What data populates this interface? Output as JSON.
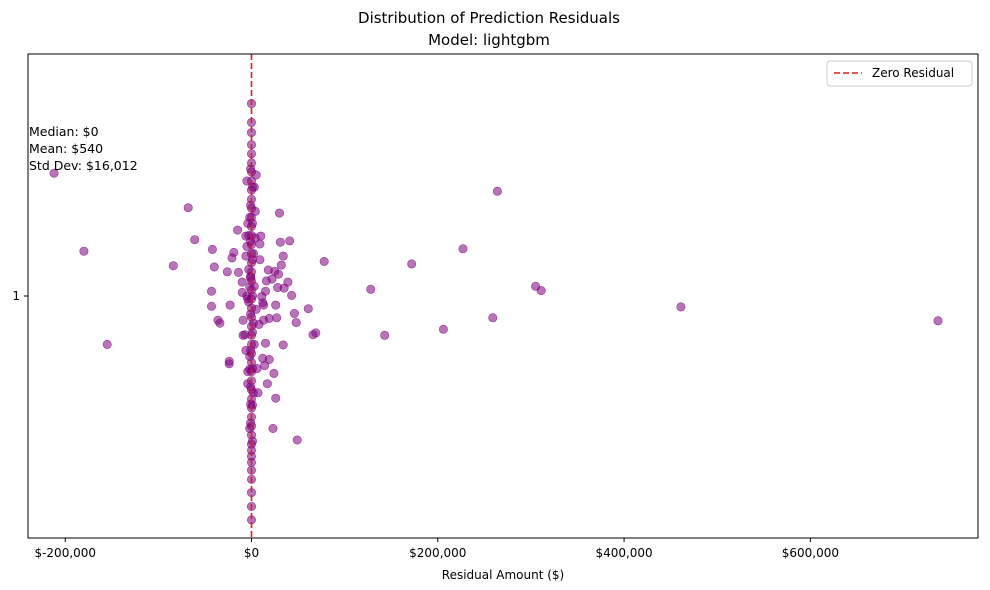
{
  "chart_data": {
    "type": "scatter",
    "title": "Distribution of Prediction Residuals",
    "subtitle": "Model: lightgbm",
    "xlabel": "Residual Amount ($)",
    "ylabel": "",
    "xlim": [
      -240000,
      780000
    ],
    "ylim": [
      0.6,
      1.4
    ],
    "x_ticks": [
      -200000,
      0,
      200000,
      400000,
      600000
    ],
    "x_tick_labels": [
      "$-200,000",
      "$0",
      "$200,000",
      "$400,000",
      "$600,000"
    ],
    "y_ticks": [
      1
    ],
    "y_tick_labels": [
      "1"
    ],
    "grid": false,
    "legend": {
      "placement": "top-right",
      "entries": [
        {
          "label": "Zero Residual",
          "style": "red-dashed-line"
        }
      ]
    },
    "reference_line": {
      "x": 0,
      "label": "Zero Residual",
      "color": "#e41a1c"
    },
    "point_color": "#800080",
    "stats": [
      "Median: $0",
      "Mean: $540",
      "Std Dev: $16,012"
    ],
    "points": [
      [
        -212000,
        1.203
      ],
      [
        -180000,
        1.074
      ],
      [
        -155000,
        0.92
      ],
      [
        -84000,
        1.05
      ],
      [
        -68000,
        1.146
      ],
      [
        -61000,
        1.093
      ],
      [
        -42000,
        1.077
      ],
      [
        -40000,
        1.048
      ],
      [
        -43000,
        1.008
      ],
      [
        -43000,
        0.983
      ],
      [
        -36000,
        0.96
      ],
      [
        -34000,
        0.955
      ],
      [
        -26000,
        1.04
      ],
      [
        -24000,
        0.892
      ],
      [
        -24000,
        0.888
      ],
      [
        -23000,
        0.985
      ],
      [
        -21000,
        1.063
      ],
      [
        -19000,
        1.072
      ],
      [
        -15000,
        1.109
      ],
      [
        -14000,
        1.039
      ],
      [
        -10000,
        1.023
      ],
      [
        -10000,
        1.006
      ],
      [
        -9000,
        0.96
      ],
      [
        -9000,
        0.935
      ],
      [
        -7000,
        0.936
      ],
      [
        -6000,
        0.91
      ],
      [
        -6000,
        1.066
      ],
      [
        -6000,
        1.099
      ],
      [
        -5000,
        1.082
      ],
      [
        -5000,
        1.0
      ],
      [
        -4000,
        0.995
      ],
      [
        -4000,
        0.875
      ],
      [
        -4000,
        0.855
      ],
      [
        -3000,
        1.044
      ],
      [
        -2000,
        0.879
      ],
      [
        -2000,
        0.781
      ],
      [
        -1000,
        0.821
      ],
      [
        -1000,
        1.032
      ],
      [
        3000,
        1.016
      ],
      [
        4000,
        1.096
      ],
      [
        5000,
        0.978
      ],
      [
        6000,
        0.88
      ],
      [
        7000,
        0.84
      ],
      [
        8000,
        0.953
      ],
      [
        9000,
        1.086
      ],
      [
        9000,
        1.06
      ],
      [
        10000,
        1.099
      ],
      [
        11000,
        0.999
      ],
      [
        12000,
        0.989
      ],
      [
        12000,
        0.897
      ],
      [
        13000,
        0.985
      ],
      [
        13000,
        0.96
      ],
      [
        14000,
        0.885
      ],
      [
        15000,
        0.922
      ],
      [
        15000,
        1.008
      ],
      [
        16000,
        1.025
      ],
      [
        17000,
        0.855
      ],
      [
        18000,
        1.043
      ],
      [
        19000,
        0.963
      ],
      [
        19000,
        0.895
      ],
      [
        22000,
        1.028
      ],
      [
        23000,
        0.781
      ],
      [
        24000,
        0.872
      ],
      [
        25000,
        1.041
      ],
      [
        26000,
        0.831
      ],
      [
        26000,
        0.985
      ],
      [
        27000,
        0.964
      ],
      [
        28000,
        1.014
      ],
      [
        29000,
        1.036
      ],
      [
        30000,
        1.137
      ],
      [
        31000,
        1.089
      ],
      [
        32000,
        1.051
      ],
      [
        34000,
        0.919
      ],
      [
        34000,
        1.066
      ],
      [
        35000,
        1.013
      ],
      [
        39000,
        1.023
      ],
      [
        41000,
        1.091
      ],
      [
        43000,
        1.001
      ],
      [
        46000,
        0.971
      ],
      [
        48000,
        0.956
      ],
      [
        49000,
        0.762
      ],
      [
        61000,
        0.979
      ],
      [
        66000,
        0.936
      ],
      [
        69000,
        0.939
      ],
      [
        78000,
        1.057
      ],
      [
        128000,
        1.011
      ],
      [
        143000,
        0.935
      ],
      [
        172000,
        1.053
      ],
      [
        206000,
        0.945
      ],
      [
        227000,
        1.078
      ],
      [
        259000,
        0.964
      ],
      [
        264000,
        1.173
      ],
      [
        305000,
        1.016
      ],
      [
        311000,
        1.009
      ],
      [
        461000,
        0.982
      ],
      [
        737000,
        0.959
      ],
      [
        0,
        1.318
      ],
      [
        0,
        1.287
      ],
      [
        0,
        1.27
      ],
      [
        0,
        1.25
      ],
      [
        0,
        1.235
      ],
      [
        0,
        1.22
      ],
      [
        0,
        1.205
      ],
      [
        0,
        1.19
      ],
      [
        0,
        1.175
      ],
      [
        0,
        1.16
      ],
      [
        0,
        1.145
      ],
      [
        0,
        1.13
      ],
      [
        0,
        1.115
      ],
      [
        0,
        1.1
      ],
      [
        0,
        1.085
      ],
      [
        0,
        1.07
      ],
      [
        0,
        1.055
      ],
      [
        0,
        1.04
      ],
      [
        0,
        1.025
      ],
      [
        0,
        1.01
      ],
      [
        0,
        0.995
      ],
      [
        0,
        0.98
      ],
      [
        0,
        0.965
      ],
      [
        0,
        0.95
      ],
      [
        0,
        0.935
      ],
      [
        0,
        0.92
      ],
      [
        0,
        0.905
      ],
      [
        0,
        0.89
      ],
      [
        0,
        0.875
      ],
      [
        0,
        0.86
      ],
      [
        0,
        0.845
      ],
      [
        0,
        0.83
      ],
      [
        0,
        0.815
      ],
      [
        0,
        0.8
      ],
      [
        0,
        0.785
      ],
      [
        0,
        0.77
      ],
      [
        0,
        0.755
      ],
      [
        0,
        0.745
      ],
      [
        0,
        0.735
      ],
      [
        0,
        0.725
      ],
      [
        0,
        0.712
      ],
      [
        0,
        0.697
      ],
      [
        0,
        0.675
      ],
      [
        0,
        0.652
      ],
      [
        0,
        0.63
      ],
      [
        -1000,
        1.21
      ],
      [
        1000,
        1.18
      ],
      [
        -1000,
        1.15
      ],
      [
        1000,
        1.12
      ],
      [
        -1000,
        1.09
      ],
      [
        1000,
        1.06
      ],
      [
        -1000,
        1.03
      ],
      [
        1000,
        1.0
      ],
      [
        -1000,
        0.97
      ],
      [
        1000,
        0.94
      ],
      [
        -1000,
        0.91
      ],
      [
        1000,
        0.88
      ],
      [
        -1000,
        0.85
      ],
      [
        1000,
        0.82
      ],
      [
        -1000,
        0.79
      ],
      [
        1000,
        0.76
      ],
      [
        -2000,
        1.13
      ],
      [
        2000,
        1.07
      ],
      [
        -2000,
        1.015
      ],
      [
        2000,
        0.955
      ],
      [
        -2000,
        0.9
      ],
      [
        2000,
        0.84
      ],
      [
        -3000,
        1.1
      ],
      [
        3000,
        1.18
      ],
      [
        3000,
        0.92
      ],
      [
        -3000,
        0.99
      ],
      [
        4000,
        1.14
      ],
      [
        -4000,
        1.12
      ],
      [
        5000,
        1.2
      ],
      [
        -5000,
        1.19
      ]
    ]
  }
}
